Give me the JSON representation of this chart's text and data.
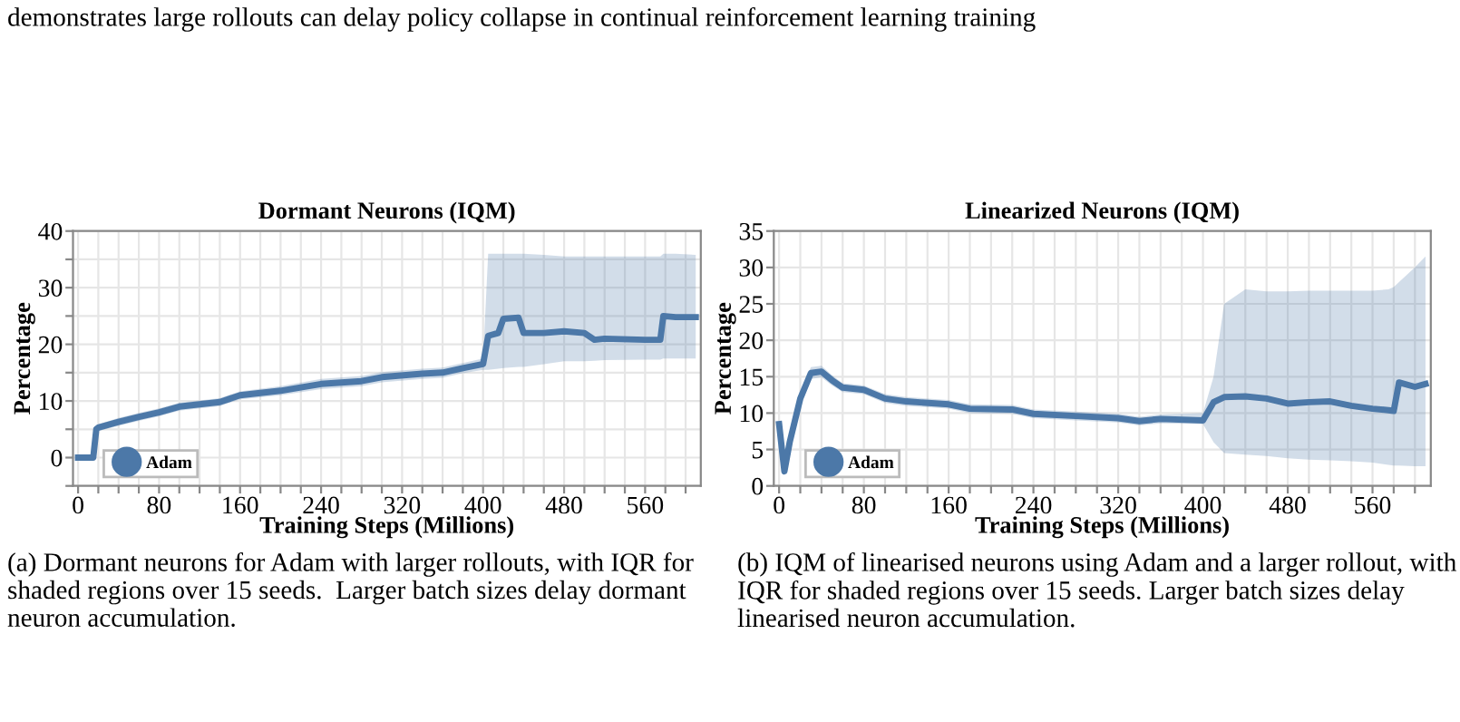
{
  "chart_data": [
    {
      "type": "line",
      "title": "Dormant Neurons (IQM)",
      "xlabel": "Training Steps (Millions)",
      "ylabel": "Percentage",
      "annotations": [
        "demonstrates large rollouts can delay policy collapse in continual reinforcement learning training",
        "(a) Dormant neurons for Adam with larger rollouts, with IQR for shaded regions over 15 seeds.  Larger batch sizes delay dormant neuron accumulation."
      ],
      "series": [
        {
          "name": "Adam",
          "color": "#4c78a8",
          "x": [
            0,
            15,
            18,
            20,
            40,
            60,
            80,
            100,
            120,
            140,
            160,
            200,
            240,
            280,
            300,
            340,
            360,
            380,
            400,
            405,
            415,
            420,
            435,
            440,
            460,
            480,
            500,
            510,
            520,
            560,
            575,
            578,
            590,
            610
          ],
          "values": [
            0,
            0,
            5,
            5.3,
            6.3,
            7.2,
            8,
            9,
            9.4,
            9.8,
            11,
            11.8,
            13,
            13.5,
            14.2,
            14.8,
            15,
            15.8,
            16.5,
            21.5,
            22,
            24.5,
            24.7,
            22,
            22,
            22.3,
            22,
            20.8,
            21,
            20.8,
            20.8,
            25,
            24.8,
            24.8
          ],
          "lower": [
            0,
            0,
            4.5,
            4.7,
            5.6,
            6.5,
            7.3,
            8.3,
            8.7,
            9.1,
            10.3,
            11,
            12.1,
            12.6,
            13.3,
            13.9,
            14.1,
            14.9,
            15.5,
            15.5,
            15.7,
            15.8,
            16,
            16,
            16.5,
            17,
            17,
            17.1,
            17.2,
            17.3,
            17.3,
            17.5,
            17.5,
            17.5
          ],
          "upper": [
            0,
            0,
            5.5,
            5.9,
            7,
            7.9,
            8.7,
            9.7,
            10.1,
            10.5,
            11.7,
            12.6,
            13.9,
            14.4,
            15.1,
            15.7,
            15.9,
            16.7,
            17.5,
            36,
            36,
            36,
            36,
            36,
            35.8,
            35.5,
            35.5,
            35.5,
            35.5,
            35.5,
            35.5,
            36,
            36,
            35.8
          ]
        }
      ],
      "xlim": [
        -5,
        615
      ],
      "ylim": [
        -5,
        40
      ],
      "xticks": [
        0,
        {
          "value": 20,
          "label": null
        },
        {
          "value": 40,
          "label": null
        },
        {
          "value": 60,
          "label": null
        },
        80,
        {
          "value": 100,
          "label": null
        },
        {
          "value": 120,
          "label": null
        },
        {
          "value": 140,
          "label": null
        },
        160,
        {
          "value": 180,
          "label": null
        },
        {
          "value": 200,
          "label": null
        },
        {
          "value": 220,
          "label": null
        },
        240,
        {
          "value": 260,
          "label": null
        },
        {
          "value": 280,
          "label": null
        },
        {
          "value": 300,
          "label": null
        },
        320,
        {
          "value": 340,
          "label": null
        },
        {
          "value": 360,
          "label": null
        },
        {
          "value": 380,
          "label": null
        },
        400,
        {
          "value": 420,
          "label": null
        },
        {
          "value": 440,
          "label": null
        },
        {
          "value": 460,
          "label": null
        },
        480,
        {
          "value": 500,
          "label": null
        },
        {
          "value": 520,
          "label": null
        },
        {
          "value": 540,
          "label": null
        },
        560,
        {
          "value": 580,
          "label": null
        },
        {
          "value": 600,
          "label": null
        }
      ],
      "yticks": [
        {
          "value": -5,
          "label": null
        },
        0,
        {
          "value": 5,
          "label": null
        },
        10,
        {
          "value": 15,
          "label": null
        },
        20,
        {
          "value": 25,
          "label": null
        },
        30,
        {
          "value": 35,
          "label": null
        },
        40
      ],
      "grid": true,
      "legend": "bottom left",
      "marker": "none",
      "line_style": "solid"
    },
    {
      "type": "line",
      "title": "Linearized Neurons (IQM)",
      "xlabel": "Training Steps (Millions)",
      "ylabel": "Percentage",
      "annotations": [
        "(b) IQM of linearised neurons using Adam and a larger rollout, with IQR for shaded regions over 15 seeds. Larger batch sizes delay linearised neuron accumulation."
      ],
      "series": [
        {
          "name": "Adam",
          "color": "#4c78a8",
          "x": [
            0,
            5,
            10,
            20,
            30,
            40,
            50,
            60,
            80,
            100,
            120,
            160,
            180,
            220,
            240,
            280,
            320,
            340,
            360,
            400,
            410,
            420,
            440,
            460,
            480,
            500,
            520,
            540,
            560,
            575,
            580,
            585,
            600,
            610
          ],
          "values": [
            8.5,
            2,
            6,
            12,
            15.5,
            15.7,
            14.5,
            13.5,
            13.2,
            12,
            11.6,
            11.2,
            10.6,
            10.5,
            9.9,
            9.6,
            9.3,
            8.9,
            9.2,
            9,
            11.5,
            12.2,
            12.3,
            12,
            11.3,
            11.5,
            11.6,
            11,
            10.6,
            10.4,
            10.3,
            14.2,
            13.6,
            14
          ],
          "lower": [
            8,
            1.5,
            5.2,
            11.2,
            14.7,
            14.9,
            13.8,
            12.9,
            12.6,
            11.4,
            11,
            10.6,
            10,
            9.9,
            9.3,
            9,
            8.7,
            8.3,
            8.6,
            8.5,
            6,
            4.5,
            4.3,
            4.1,
            3.8,
            3.6,
            3.5,
            3.4,
            3.2,
            2.9,
            2.8,
            2.8,
            2.7,
            2.7
          ],
          "upper": [
            9,
            2.5,
            6.8,
            12.8,
            16.3,
            16.5,
            15.2,
            14.1,
            13.8,
            12.6,
            12.2,
            11.8,
            11.2,
            11.1,
            10.5,
            10.2,
            9.9,
            9.5,
            9.8,
            10,
            15,
            25,
            27,
            26.7,
            26.7,
            26.8,
            26.8,
            26.8,
            26.8,
            27,
            27.3,
            28,
            30,
            31.5
          ]
        }
      ],
      "xlim": [
        -5,
        615
      ],
      "ylim": [
        0,
        35
      ],
      "xticks": [
        0,
        {
          "value": 20,
          "label": null
        },
        {
          "value": 40,
          "label": null
        },
        {
          "value": 60,
          "label": null
        },
        80,
        {
          "value": 100,
          "label": null
        },
        {
          "value": 120,
          "label": null
        },
        {
          "value": 140,
          "label": null
        },
        160,
        {
          "value": 180,
          "label": null
        },
        {
          "value": 200,
          "label": null
        },
        {
          "value": 220,
          "label": null
        },
        240,
        {
          "value": 260,
          "label": null
        },
        {
          "value": 280,
          "label": null
        },
        {
          "value": 300,
          "label": null
        },
        320,
        {
          "value": 340,
          "label": null
        },
        {
          "value": 360,
          "label": null
        },
        {
          "value": 380,
          "label": null
        },
        400,
        {
          "value": 420,
          "label": null
        },
        {
          "value": 440,
          "label": null
        },
        {
          "value": 460,
          "label": null
        },
        480,
        {
          "value": 500,
          "label": null
        },
        {
          "value": 520,
          "label": null
        },
        {
          "value": 540,
          "label": null
        },
        560,
        {
          "value": 580,
          "label": null
        },
        {
          "value": 600,
          "label": null
        }
      ],
      "yticks": [
        0,
        5,
        10,
        15,
        20,
        25,
        30,
        35
      ],
      "grid": true,
      "legend": "bottom left",
      "marker": "none",
      "line_style": "solid"
    }
  ]
}
